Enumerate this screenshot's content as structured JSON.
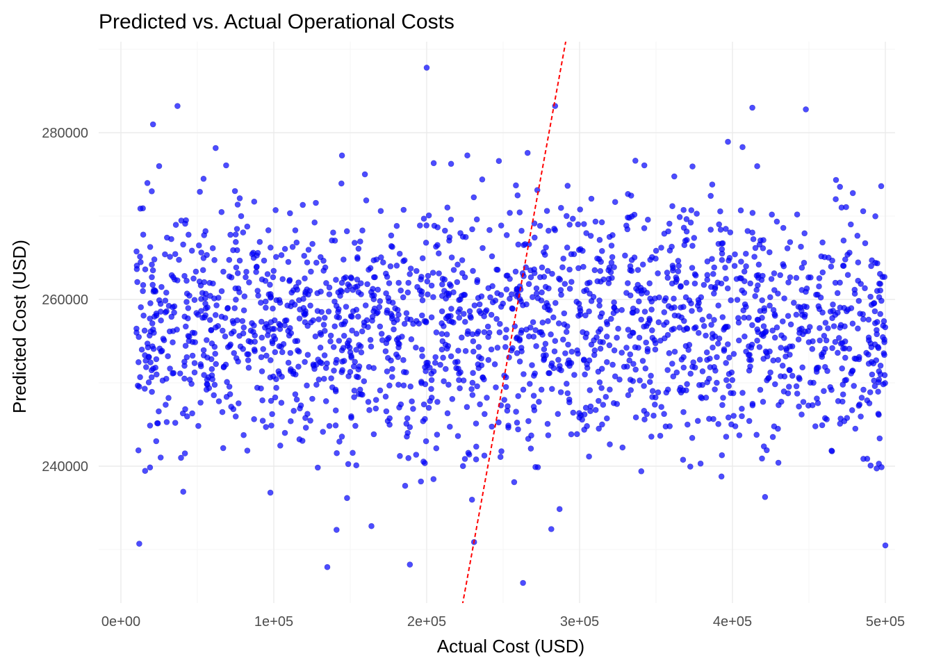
{
  "chart_data": {
    "type": "scatter",
    "title": "Predicted vs. Actual Operational Costs",
    "xlabel": "Actual Cost (USD)",
    "ylabel": "Predicted Cost (USD)",
    "xlim": [
      0,
      510000
    ],
    "ylim": [
      222500,
      291000
    ],
    "x_ticks": [
      {
        "value": 0,
        "label": "0e+00"
      },
      {
        "value": 100000,
        "label": "1e+05"
      },
      {
        "value": 200000,
        "label": "2e+05"
      },
      {
        "value": 300000,
        "label": "3e+05"
      },
      {
        "value": 400000,
        "label": "4e+05"
      },
      {
        "value": 500000,
        "label": "5e+05"
      }
    ],
    "y_ticks": [
      {
        "value": 240000,
        "label": "240000"
      },
      {
        "value": 260000,
        "label": "260000"
      },
      {
        "value": 280000,
        "label": "280000"
      }
    ],
    "grid": true,
    "point_color": "#0000ff",
    "point_opacity": 0.7,
    "reference_line": {
      "type": "y = x",
      "color": "#ff0000",
      "style": "dashed"
    },
    "highlighted_points": [
      {
        "x": 200000,
        "y": 287800
      },
      {
        "x": 37000,
        "y": 283200
      },
      {
        "x": 21000,
        "y": 281000
      },
      {
        "x": 284000,
        "y": 283200
      },
      {
        "x": 413000,
        "y": 283000
      },
      {
        "x": 448000,
        "y": 282800
      },
      {
        "x": 12000,
        "y": 230700
      },
      {
        "x": 500000,
        "y": 230500
      },
      {
        "x": 135000,
        "y": 227900
      },
      {
        "x": 263000,
        "y": 226000
      },
      {
        "x": 189000,
        "y": 228200
      },
      {
        "x": 231000,
        "y": 230900
      }
    ],
    "generated_points": {
      "count": 2000,
      "x_range": [
        10000,
        500000
      ],
      "y_center": 257000,
      "y_spread": 7500,
      "y_min": 226000,
      "y_max": 285000
    }
  }
}
